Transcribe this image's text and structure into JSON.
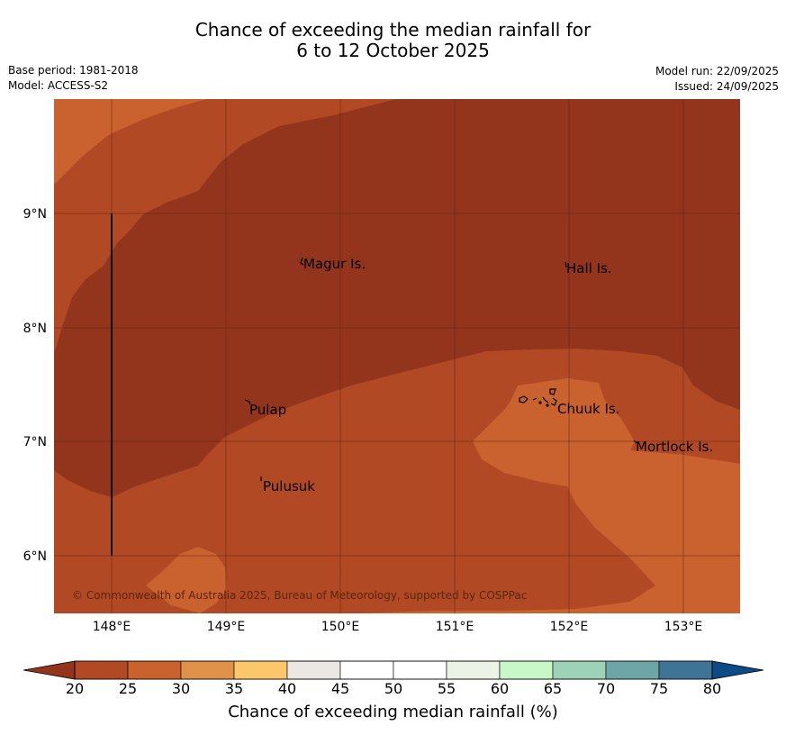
{
  "title": {
    "line1": "Chance of exceeding the median rainfall for",
    "line2": "6 to 12 October 2025"
  },
  "meta_left": {
    "base_period": "Base period: 1981-2018",
    "model": "Model: ACCESS-S2"
  },
  "meta_right": {
    "model_run": "Model run: 22/09/2025",
    "issued": "Issued: 24/09/2025"
  },
  "map": {
    "lat_ticks": [
      "9°N",
      "8°N",
      "7°N",
      "6°N"
    ],
    "lon_ticks": [
      "148°E",
      "149°E",
      "150°E",
      "151°E",
      "152°E",
      "153°E"
    ],
    "places": [
      {
        "name": "Magur Is."
      },
      {
        "name": "Hall Is."
      },
      {
        "name": "Pulap"
      },
      {
        "name": "Chuuk Is."
      },
      {
        "name": "Mortlock Is."
      },
      {
        "name": "Pulusuk"
      }
    ],
    "copyright": "© Commonwealth of Australia 2025, Bureau of Meteorology, supported by COSPPac"
  },
  "colorbar": {
    "ticks": [
      "20",
      "25",
      "30",
      "35",
      "40",
      "45",
      "50",
      "55",
      "60",
      "65",
      "70",
      "75",
      "80"
    ],
    "colors": [
      "#b14a24",
      "#c9622e",
      "#e0924a",
      "#fcc66a",
      "#ebe7e2",
      "#ffffff",
      "#ffffff",
      "#eaf3e6",
      "#c8f7c8",
      "#9dd1b8",
      "#6ea6a8",
      "#3e7596"
    ],
    "under_color": "#93341d",
    "over_color": "#0d4b86",
    "label": "Chance of exceeding median rainfall (%)"
  },
  "palette": {
    "band_20": "#93341d",
    "band_20_25": "#b14a24",
    "band_25_30": "#c9622e"
  }
}
